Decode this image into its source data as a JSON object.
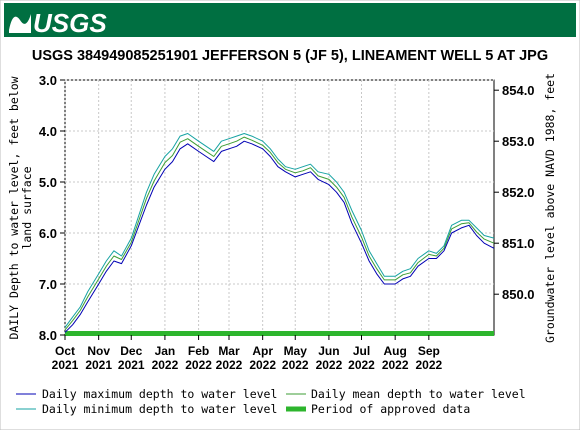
{
  "brand": {
    "logo_text": "USGS",
    "header_color": "#006f41"
  },
  "chart_data": {
    "type": "line",
    "title": "USGS 384949085251901 JEFFERSON 5 (JF 5), LINEAMENT WELL 5 AT JPG",
    "ylabel_left": [
      "DAILY Depth to water level, feet below",
      "land surface"
    ],
    "ylabel_right": "Groundwater level above NAVD 1988, feet",
    "ylim_left": [
      3.0,
      8.0
    ],
    "left_axis_inverted": true,
    "yticks_left": [
      "3.0",
      "4.0",
      "5.0",
      "6.0",
      "7.0",
      "8.0"
    ],
    "yticks_left_values": [
      3.0,
      4.0,
      5.0,
      6.0,
      7.0,
      8.0
    ],
    "ylim_right": [
      849.2,
      854.2
    ],
    "yticks_right": [
      "854.0",
      "853.0",
      "852.0",
      "851.0",
      "850.0"
    ],
    "yticks_right_values": [
      854.0,
      853.0,
      852.0,
      851.0,
      850.0
    ],
    "x_range": [
      "2021-10-01",
      "2022-10-31"
    ],
    "xticks": [
      {
        "month": "Oct",
        "year": "2021",
        "date": "2021-10-01"
      },
      {
        "month": "Nov",
        "year": "2021",
        "date": "2021-11-01"
      },
      {
        "month": "Dec",
        "year": "2021",
        "date": "2021-12-01"
      },
      {
        "month": "Jan",
        "year": "2022",
        "date": "2022-01-01"
      },
      {
        "month": "Feb",
        "year": "2022",
        "date": "2022-02-01"
      },
      {
        "month": "Mar",
        "year": "2022",
        "date": "2022-03-01"
      },
      {
        "month": "Apr",
        "year": "2022",
        "date": "2022-04-01"
      },
      {
        "month": "May",
        "year": "2022",
        "date": "2022-05-01"
      },
      {
        "month": "Jun",
        "year": "2022",
        "date": "2022-06-01"
      },
      {
        "month": "Jul",
        "year": "2022",
        "date": "2022-07-01"
      },
      {
        "month": "Aug",
        "year": "2022",
        "date": "2022-08-01"
      },
      {
        "month": "Sep",
        "year": "2022",
        "date": "2022-09-01"
      }
    ],
    "grid": true,
    "series": [
      {
        "name": "Daily maximum depth to water level",
        "color": "#0000b4",
        "x": [
          "2021-10-01",
          "2021-10-08",
          "2021-10-15",
          "2021-10-22",
          "2021-11-01",
          "2021-11-08",
          "2021-11-15",
          "2021-11-22",
          "2021-12-01",
          "2021-12-08",
          "2021-12-15",
          "2021-12-22",
          "2022-01-01",
          "2022-01-08",
          "2022-01-15",
          "2022-01-22",
          "2022-02-01",
          "2022-02-08",
          "2022-02-15",
          "2022-02-22",
          "2022-03-01",
          "2022-03-08",
          "2022-03-15",
          "2022-03-22",
          "2022-04-01",
          "2022-04-08",
          "2022-04-15",
          "2022-04-22",
          "2022-05-01",
          "2022-05-08",
          "2022-05-15",
          "2022-05-22",
          "2022-06-01",
          "2022-06-08",
          "2022-06-15",
          "2022-06-22",
          "2022-07-01",
          "2022-07-08",
          "2022-07-15",
          "2022-07-22",
          "2022-08-01",
          "2022-08-08",
          "2022-08-15",
          "2022-08-22",
          "2022-09-01",
          "2022-09-08",
          "2022-09-15",
          "2022-09-22",
          "2022-10-01",
          "2022-10-08",
          "2022-10-15",
          "2022-10-22",
          "2022-10-31"
        ],
        "values": [
          7.95,
          7.8,
          7.6,
          7.35,
          7.0,
          6.75,
          6.55,
          6.6,
          6.25,
          5.85,
          5.45,
          5.1,
          4.75,
          4.6,
          4.35,
          4.25,
          4.4,
          4.5,
          4.6,
          4.4,
          4.35,
          4.3,
          4.2,
          4.25,
          4.35,
          4.5,
          4.7,
          4.8,
          4.9,
          4.85,
          4.8,
          4.95,
          5.05,
          5.2,
          5.4,
          5.8,
          6.2,
          6.55,
          6.8,
          7.0,
          7.0,
          6.9,
          6.85,
          6.65,
          6.5,
          6.5,
          6.35,
          6.0,
          5.9,
          5.85,
          6.05,
          6.2,
          6.3
        ]
      },
      {
        "name": "Daily minimum depth to water level",
        "color": "#16a3a3",
        "x": [
          "2021-10-01",
          "2021-10-08",
          "2021-10-15",
          "2021-10-22",
          "2021-11-01",
          "2021-11-08",
          "2021-11-15",
          "2021-11-22",
          "2021-12-01",
          "2021-12-08",
          "2021-12-15",
          "2021-12-22",
          "2022-01-01",
          "2022-01-08",
          "2022-01-15",
          "2022-01-22",
          "2022-02-01",
          "2022-02-08",
          "2022-02-15",
          "2022-02-22",
          "2022-03-01",
          "2022-03-08",
          "2022-03-15",
          "2022-03-22",
          "2022-04-01",
          "2022-04-08",
          "2022-04-15",
          "2022-04-22",
          "2022-05-01",
          "2022-05-08",
          "2022-05-15",
          "2022-05-22",
          "2022-06-01",
          "2022-06-08",
          "2022-06-15",
          "2022-06-22",
          "2022-07-01",
          "2022-07-08",
          "2022-07-15",
          "2022-07-22",
          "2022-08-01",
          "2022-08-08",
          "2022-08-15",
          "2022-08-22",
          "2022-09-01",
          "2022-09-08",
          "2022-09-15",
          "2022-09-22",
          "2022-10-01",
          "2022-10-08",
          "2022-10-15",
          "2022-10-22",
          "2022-10-31"
        ],
        "values": [
          7.85,
          7.65,
          7.45,
          7.15,
          6.8,
          6.55,
          6.35,
          6.45,
          6.1,
          5.65,
          5.2,
          4.85,
          4.5,
          4.35,
          4.1,
          4.05,
          4.2,
          4.3,
          4.4,
          4.2,
          4.15,
          4.1,
          4.05,
          4.1,
          4.2,
          4.35,
          4.55,
          4.7,
          4.75,
          4.7,
          4.65,
          4.8,
          4.85,
          5.0,
          5.2,
          5.55,
          5.95,
          6.35,
          6.6,
          6.85,
          6.85,
          6.75,
          6.7,
          6.5,
          6.35,
          6.4,
          6.25,
          5.85,
          5.75,
          5.75,
          5.9,
          6.05,
          6.1
        ]
      },
      {
        "name": "Daily mean depth to water level",
        "color": "#3e9d34",
        "x": [
          "2021-10-01",
          "2021-10-08",
          "2021-10-15",
          "2021-10-22",
          "2021-11-01",
          "2021-11-08",
          "2021-11-15",
          "2021-11-22",
          "2021-12-01",
          "2021-12-08",
          "2021-12-15",
          "2021-12-22",
          "2022-01-01",
          "2022-01-08",
          "2022-01-15",
          "2022-01-22",
          "2022-02-01",
          "2022-02-08",
          "2022-02-15",
          "2022-02-22",
          "2022-03-01",
          "2022-03-08",
          "2022-03-15",
          "2022-03-22",
          "2022-04-01",
          "2022-04-08",
          "2022-04-15",
          "2022-04-22",
          "2022-05-01",
          "2022-05-08",
          "2022-05-15",
          "2022-05-22",
          "2022-06-01",
          "2022-06-08",
          "2022-06-15",
          "2022-06-22",
          "2022-07-01",
          "2022-07-08",
          "2022-07-15",
          "2022-07-22",
          "2022-08-01",
          "2022-08-08",
          "2022-08-15",
          "2022-08-22",
          "2022-09-01",
          "2022-09-08",
          "2022-09-15",
          "2022-09-22",
          "2022-10-01",
          "2022-10-08",
          "2022-10-15",
          "2022-10-22",
          "2022-10-31"
        ],
        "values": [
          7.9,
          7.72,
          7.52,
          7.25,
          6.9,
          6.65,
          6.45,
          6.52,
          6.18,
          5.75,
          5.32,
          4.98,
          4.62,
          4.48,
          4.22,
          4.15,
          4.3,
          4.4,
          4.5,
          4.3,
          4.25,
          4.2,
          4.12,
          4.18,
          4.28,
          4.42,
          4.62,
          4.75,
          4.82,
          4.78,
          4.72,
          4.88,
          4.95,
          5.1,
          5.3,
          5.68,
          6.08,
          6.45,
          6.7,
          6.92,
          6.92,
          6.82,
          6.78,
          6.58,
          6.42,
          6.45,
          6.3,
          5.92,
          5.82,
          5.8,
          5.98,
          6.12,
          6.2
        ]
      },
      {
        "name": "Period of approved data",
        "color": "#2db52d",
        "x": [
          "2021-10-01",
          "2022-10-31"
        ],
        "values": [
          7.97,
          7.97
        ]
      }
    ]
  }
}
